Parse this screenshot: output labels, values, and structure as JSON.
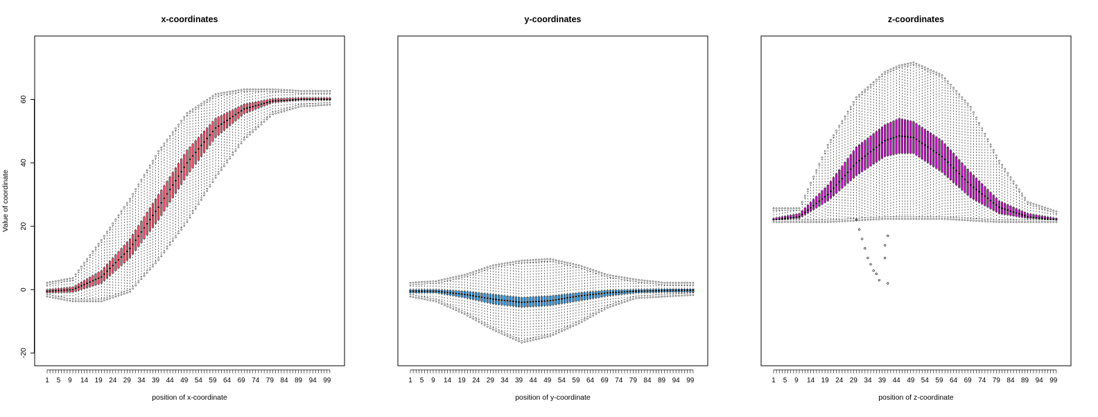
{
  "ylabel": "Value of coordinate",
  "chart_data": [
    {
      "type": "boxplot",
      "title": "x-coordinates",
      "xlabel": "position of x-coordinate",
      "ylabel": "Value of coordinate",
      "ylim": [
        -24,
        80
      ],
      "yticks": [
        -20,
        0,
        20,
        40,
        60
      ],
      "xtick_labels": [
        "1",
        "5",
        "9",
        "14",
        "19",
        "24",
        "29",
        "34",
        "39",
        "44",
        "49",
        "54",
        "59",
        "64",
        "69",
        "74",
        "79",
        "84",
        "89",
        "94",
        "99"
      ],
      "n_positions": 100,
      "box_color": "#e0526a",
      "profile": {
        "description": "sigmoid rising from about 0 to about 60",
        "positions": [
          1,
          10,
          20,
          30,
          40,
          50,
          60,
          70,
          80,
          90,
          100
        ],
        "median": [
          -0.5,
          0,
          4,
          13,
          26,
          40,
          51,
          57,
          59.5,
          60,
          60
        ],
        "q1": [
          -1,
          -0.8,
          2,
          10,
          22,
          36,
          48,
          55.5,
          59,
          59.8,
          59.8
        ],
        "q3": [
          0,
          0.8,
          6,
          16,
          30,
          44,
          54,
          58.5,
          60.2,
          60.5,
          60.5
        ],
        "whisker_low": [
          -1.5,
          -3,
          -3,
          0,
          10,
          22,
          36,
          48,
          56,
          58.5,
          59
        ],
        "whisker_high": [
          1.5,
          3,
          15,
          28,
          43,
          55,
          61,
          62.5,
          62.5,
          62,
          62
        ]
      }
    },
    {
      "type": "boxplot",
      "title": "y-coordinates",
      "xlabel": "position of y-coordinate",
      "ylim": [
        -24,
        80
      ],
      "xtick_labels": [
        "1",
        "5",
        "9",
        "14",
        "19",
        "24",
        "29",
        "34",
        "39",
        "44",
        "49",
        "54",
        "59",
        "64",
        "69",
        "74",
        "79",
        "84",
        "89",
        "94",
        "99"
      ],
      "n_positions": 100,
      "box_color": "#2c8fd6",
      "profile": {
        "description": "near 0 with a shallow dip around position 40",
        "positions": [
          1,
          10,
          20,
          30,
          40,
          50,
          60,
          70,
          80,
          90,
          100
        ],
        "median": [
          -0.5,
          -0.5,
          -1.5,
          -3,
          -4,
          -3.5,
          -2,
          -1,
          -0.5,
          -0.3,
          -0.2
        ],
        "q1": [
          -1,
          -1,
          -2.5,
          -4.5,
          -5.5,
          -5,
          -3.5,
          -2,
          -1,
          -0.8,
          -0.8
        ],
        "q3": [
          0,
          0,
          -0.5,
          -1.5,
          -2.5,
          -2,
          -1,
          -0.2,
          0,
          0.2,
          0.2
        ],
        "whisker_low": [
          -1.5,
          -3,
          -7,
          -12,
          -16,
          -14,
          -10,
          -5,
          -2,
          -1.5,
          -1
        ],
        "whisker_high": [
          1.5,
          2,
          4,
          7,
          8.5,
          9,
          7,
          4,
          2.5,
          1.5,
          1.5
        ]
      }
    },
    {
      "type": "boxplot",
      "title": "z-coordinates",
      "xlabel": "position of z-coordinate",
      "ylim": [
        -24,
        80
      ],
      "xtick_labels": [
        "1",
        "5",
        "9",
        "14",
        "19",
        "24",
        "29",
        "34",
        "39",
        "44",
        "49",
        "54",
        "59",
        "64",
        "69",
        "74",
        "79",
        "84",
        "89",
        "94",
        "99"
      ],
      "n_positions": 100,
      "box_color": "#b217b2",
      "profile": {
        "description": "bell shape rising from about 22 to a peak near 49 at position 45",
        "positions": [
          1,
          10,
          20,
          30,
          40,
          45,
          50,
          60,
          70,
          80,
          90,
          100
        ],
        "median": [
          22,
          23,
          30,
          40,
          47,
          48.5,
          48,
          42,
          33,
          26,
          23,
          22
        ],
        "q1": [
          22,
          22.5,
          28,
          36,
          42,
          43,
          43,
          37,
          29,
          24,
          22.5,
          22
        ],
        "q3": [
          22.5,
          24,
          33,
          45,
          52,
          54,
          53,
          47,
          37,
          28,
          24,
          22.5
        ],
        "whisker_low": [
          22,
          22,
          22,
          22.5,
          23,
          23,
          23,
          23,
          22.5,
          22,
          22,
          22
        ],
        "whisker_high": [
          25,
          25,
          45,
          60,
          68,
          70,
          71,
          67,
          57,
          40,
          27,
          24
        ]
      },
      "outliers": [
        {
          "x": 30,
          "y": 22
        },
        {
          "x": 31,
          "y": 19
        },
        {
          "x": 32,
          "y": 16
        },
        {
          "x": 33,
          "y": 13
        },
        {
          "x": 34,
          "y": 10
        },
        {
          "x": 35,
          "y": 8
        },
        {
          "x": 36,
          "y": 6
        },
        {
          "x": 37,
          "y": 5
        },
        {
          "x": 38,
          "y": 3
        },
        {
          "x": 40,
          "y": 10
        },
        {
          "x": 40,
          "y": 14
        },
        {
          "x": 41,
          "y": 17
        },
        {
          "x": 41,
          "y": 2
        }
      ]
    }
  ]
}
